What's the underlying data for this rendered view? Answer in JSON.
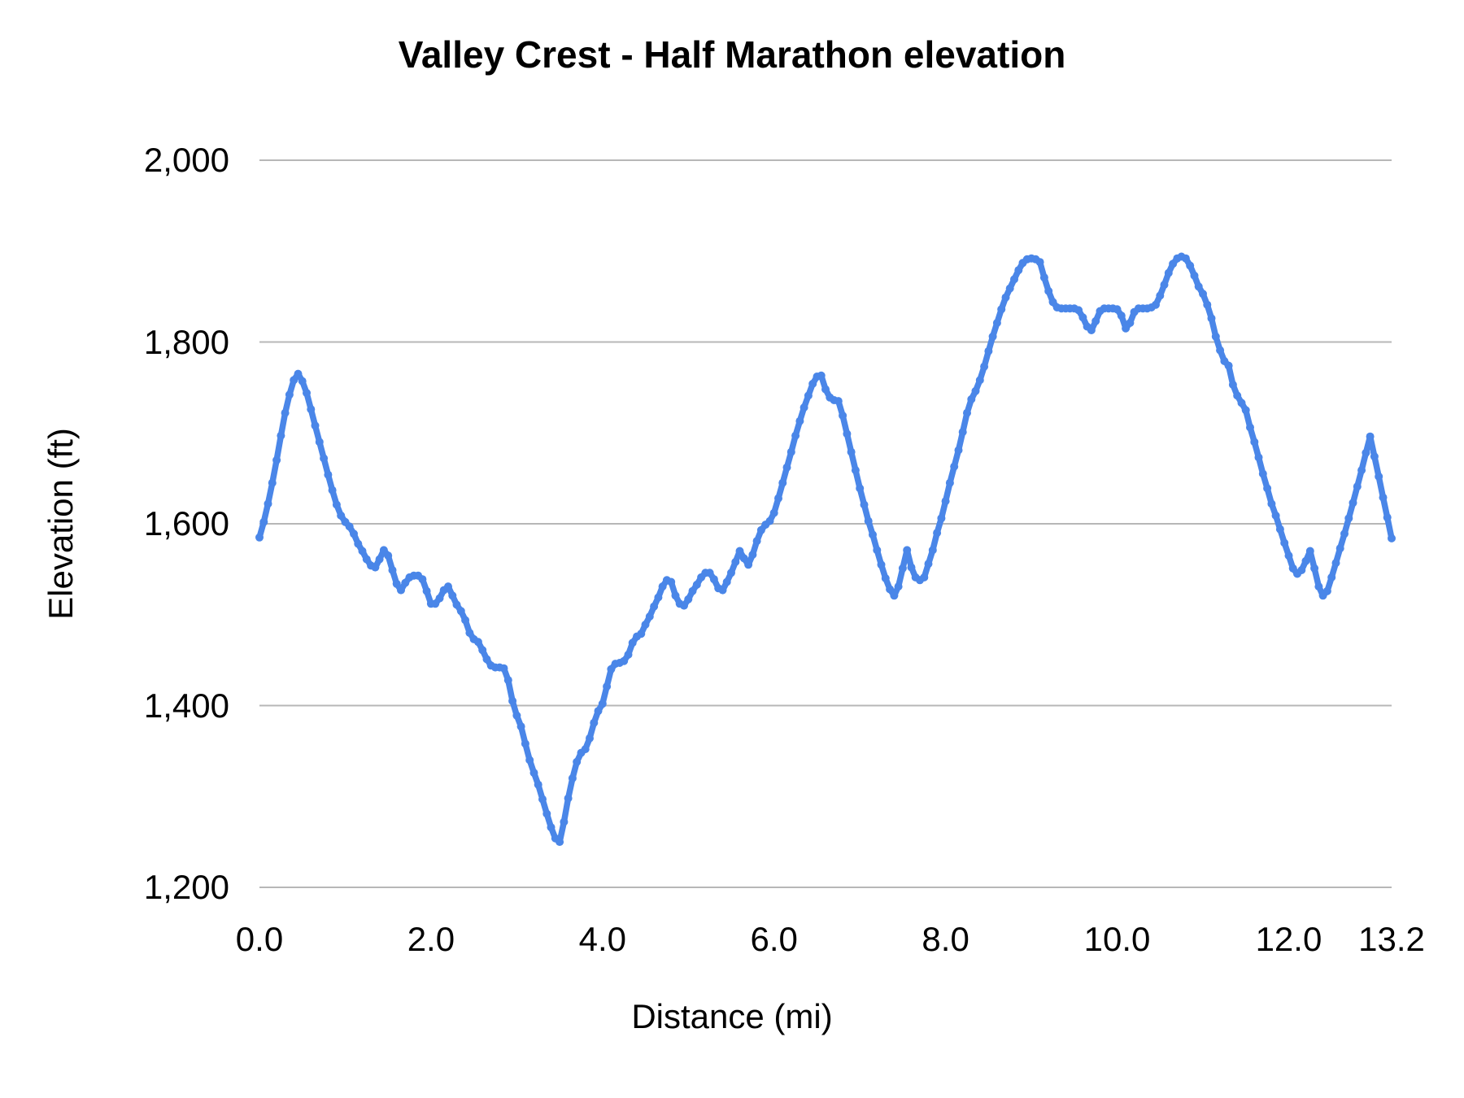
{
  "chart_data": {
    "type": "line",
    "title": "Valley Crest - Half Marathon elevation",
    "xlabel": "Distance (mi)",
    "ylabel": "Elevation (ft)",
    "xlim": [
      0,
      13.2
    ],
    "ylim": [
      1200,
      2000
    ],
    "grid": "horizontal",
    "legend": "none",
    "line_color": "#4a86e8",
    "gridline_color": "#b7b7b7",
    "text_color": "#000000",
    "xticks": {
      "values": [
        0,
        2,
        4,
        6,
        8,
        10,
        12,
        13.2
      ],
      "labels": [
        "0.0",
        "2.0",
        "4.0",
        "6.0",
        "8.0",
        "10.0",
        "12.0",
        "13.2"
      ]
    },
    "yticks": {
      "values": [
        1200,
        1400,
        1600,
        1800,
        2000
      ],
      "labels": [
        "1,200",
        "1,400",
        "1,600",
        "1,800",
        "2,000"
      ]
    },
    "series": [
      {
        "name": "Elevation",
        "points": [
          [
            0.0,
            1585
          ],
          [
            0.05,
            1602
          ],
          [
            0.1,
            1622
          ],
          [
            0.15,
            1645
          ],
          [
            0.2,
            1670
          ],
          [
            0.25,
            1697
          ],
          [
            0.3,
            1722
          ],
          [
            0.35,
            1742
          ],
          [
            0.4,
            1758
          ],
          [
            0.45,
            1765
          ],
          [
            0.5,
            1757
          ],
          [
            0.55,
            1744
          ],
          [
            0.6,
            1726
          ],
          [
            0.65,
            1708
          ],
          [
            0.7,
            1690
          ],
          [
            0.75,
            1672
          ],
          [
            0.8,
            1654
          ],
          [
            0.85,
            1637
          ],
          [
            0.9,
            1621
          ],
          [
            0.95,
            1609
          ],
          [
            1.0,
            1602
          ],
          [
            1.05,
            1597
          ],
          [
            1.1,
            1589
          ],
          [
            1.15,
            1578
          ],
          [
            1.2,
            1570
          ],
          [
            1.25,
            1561
          ],
          [
            1.3,
            1554
          ],
          [
            1.35,
            1552
          ],
          [
            1.4,
            1561
          ],
          [
            1.45,
            1571
          ],
          [
            1.5,
            1565
          ],
          [
            1.55,
            1549
          ],
          [
            1.6,
            1534
          ],
          [
            1.65,
            1527
          ],
          [
            1.7,
            1535
          ],
          [
            1.75,
            1541
          ],
          [
            1.8,
            1543
          ],
          [
            1.85,
            1543
          ],
          [
            1.9,
            1539
          ],
          [
            1.95,
            1526
          ],
          [
            2.0,
            1512
          ],
          [
            2.05,
            1512
          ],
          [
            2.1,
            1518
          ],
          [
            2.15,
            1527
          ],
          [
            2.2,
            1531
          ],
          [
            2.25,
            1521
          ],
          [
            2.3,
            1511
          ],
          [
            2.35,
            1504
          ],
          [
            2.4,
            1494
          ],
          [
            2.45,
            1480
          ],
          [
            2.5,
            1473
          ],
          [
            2.55,
            1470
          ],
          [
            2.6,
            1461
          ],
          [
            2.65,
            1451
          ],
          [
            2.7,
            1444
          ],
          [
            2.75,
            1442
          ],
          [
            2.8,
            1442
          ],
          [
            2.85,
            1441
          ],
          [
            2.9,
            1428
          ],
          [
            2.95,
            1405
          ],
          [
            3.0,
            1389
          ],
          [
            3.05,
            1377
          ],
          [
            3.1,
            1358
          ],
          [
            3.15,
            1340
          ],
          [
            3.2,
            1326
          ],
          [
            3.25,
            1313
          ],
          [
            3.3,
            1297
          ],
          [
            3.35,
            1281
          ],
          [
            3.4,
            1266
          ],
          [
            3.45,
            1254
          ],
          [
            3.5,
            1250
          ],
          [
            3.55,
            1272
          ],
          [
            3.6,
            1298
          ],
          [
            3.65,
            1320
          ],
          [
            3.7,
            1338
          ],
          [
            3.75,
            1348
          ],
          [
            3.8,
            1352
          ],
          [
            3.85,
            1364
          ],
          [
            3.9,
            1381
          ],
          [
            3.95,
            1394
          ],
          [
            4.0,
            1402
          ],
          [
            4.05,
            1421
          ],
          [
            4.1,
            1440
          ],
          [
            4.15,
            1446
          ],
          [
            4.2,
            1447
          ],
          [
            4.25,
            1449
          ],
          [
            4.3,
            1456
          ],
          [
            4.35,
            1469
          ],
          [
            4.4,
            1476
          ],
          [
            4.45,
            1479
          ],
          [
            4.5,
            1489
          ],
          [
            4.55,
            1498
          ],
          [
            4.6,
            1509
          ],
          [
            4.65,
            1519
          ],
          [
            4.7,
            1531
          ],
          [
            4.75,
            1538
          ],
          [
            4.8,
            1536
          ],
          [
            4.85,
            1521
          ],
          [
            4.9,
            1512
          ],
          [
            4.95,
            1510
          ],
          [
            5.0,
            1517
          ],
          [
            5.05,
            1526
          ],
          [
            5.1,
            1533
          ],
          [
            5.15,
            1541
          ],
          [
            5.2,
            1546
          ],
          [
            5.25,
            1546
          ],
          [
            5.3,
            1539
          ],
          [
            5.35,
            1529
          ],
          [
            5.4,
            1527
          ],
          [
            5.45,
            1536
          ],
          [
            5.5,
            1546
          ],
          [
            5.55,
            1558
          ],
          [
            5.6,
            1570
          ],
          [
            5.65,
            1562
          ],
          [
            5.7,
            1555
          ],
          [
            5.75,
            1566
          ],
          [
            5.8,
            1581
          ],
          [
            5.85,
            1593
          ],
          [
            5.9,
            1599
          ],
          [
            5.95,
            1603
          ],
          [
            6.0,
            1612
          ],
          [
            6.05,
            1628
          ],
          [
            6.1,
            1645
          ],
          [
            6.15,
            1662
          ],
          [
            6.2,
            1679
          ],
          [
            6.25,
            1697
          ],
          [
            6.3,
            1713
          ],
          [
            6.35,
            1728
          ],
          [
            6.4,
            1741
          ],
          [
            6.45,
            1754
          ],
          [
            6.5,
            1762
          ],
          [
            6.55,
            1763
          ],
          [
            6.6,
            1748
          ],
          [
            6.65,
            1739
          ],
          [
            6.7,
            1736
          ],
          [
            6.75,
            1735
          ],
          [
            6.8,
            1719
          ],
          [
            6.85,
            1699
          ],
          [
            6.9,
            1679
          ],
          [
            6.95,
            1659
          ],
          [
            7.0,
            1639
          ],
          [
            7.05,
            1621
          ],
          [
            7.1,
            1603
          ],
          [
            7.15,
            1588
          ],
          [
            7.2,
            1571
          ],
          [
            7.25,
            1555
          ],
          [
            7.3,
            1540
          ],
          [
            7.35,
            1528
          ],
          [
            7.4,
            1521
          ],
          [
            7.45,
            1531
          ],
          [
            7.5,
            1551
          ],
          [
            7.55,
            1571
          ],
          [
            7.6,
            1552
          ],
          [
            7.65,
            1541
          ],
          [
            7.7,
            1538
          ],
          [
            7.75,
            1541
          ],
          [
            7.8,
            1556
          ],
          [
            7.85,
            1571
          ],
          [
            7.9,
            1590
          ],
          [
            7.95,
            1606
          ],
          [
            8.0,
            1625
          ],
          [
            8.05,
            1645
          ],
          [
            8.1,
            1663
          ],
          [
            8.15,
            1681
          ],
          [
            8.2,
            1701
          ],
          [
            8.25,
            1722
          ],
          [
            8.3,
            1737
          ],
          [
            8.35,
            1746
          ],
          [
            8.4,
            1758
          ],
          [
            8.45,
            1773
          ],
          [
            8.5,
            1790
          ],
          [
            8.55,
            1806
          ],
          [
            8.6,
            1821
          ],
          [
            8.65,
            1836
          ],
          [
            8.7,
            1849
          ],
          [
            8.75,
            1859
          ],
          [
            8.8,
            1869
          ],
          [
            8.85,
            1879
          ],
          [
            8.9,
            1887
          ],
          [
            8.95,
            1891
          ],
          [
            9.0,
            1892
          ],
          [
            9.05,
            1891
          ],
          [
            9.1,
            1888
          ],
          [
            9.15,
            1871
          ],
          [
            9.2,
            1856
          ],
          [
            9.25,
            1844
          ],
          [
            9.3,
            1838
          ],
          [
            9.35,
            1837
          ],
          [
            9.4,
            1837
          ],
          [
            9.45,
            1837
          ],
          [
            9.5,
            1837
          ],
          [
            9.55,
            1835
          ],
          [
            9.6,
            1827
          ],
          [
            9.65,
            1817
          ],
          [
            9.7,
            1813
          ],
          [
            9.75,
            1823
          ],
          [
            9.8,
            1834
          ],
          [
            9.85,
            1837
          ],
          [
            9.9,
            1837
          ],
          [
            9.95,
            1837
          ],
          [
            10.0,
            1836
          ],
          [
            10.05,
            1829
          ],
          [
            10.1,
            1815
          ],
          [
            10.15,
            1821
          ],
          [
            10.2,
            1833
          ],
          [
            10.25,
            1837
          ],
          [
            10.3,
            1837
          ],
          [
            10.35,
            1837
          ],
          [
            10.4,
            1838
          ],
          [
            10.45,
            1841
          ],
          [
            10.5,
            1851
          ],
          [
            10.55,
            1863
          ],
          [
            10.6,
            1876
          ],
          [
            10.65,
            1886
          ],
          [
            10.7,
            1892
          ],
          [
            10.75,
            1894
          ],
          [
            10.8,
            1892
          ],
          [
            10.85,
            1884
          ],
          [
            10.9,
            1873
          ],
          [
            10.95,
            1861
          ],
          [
            11.0,
            1853
          ],
          [
            11.05,
            1841
          ],
          [
            11.1,
            1826
          ],
          [
            11.15,
            1806
          ],
          [
            11.2,
            1791
          ],
          [
            11.25,
            1779
          ],
          [
            11.3,
            1774
          ],
          [
            11.35,
            1753
          ],
          [
            11.4,
            1741
          ],
          [
            11.45,
            1733
          ],
          [
            11.5,
            1725
          ],
          [
            11.55,
            1706
          ],
          [
            11.6,
            1690
          ],
          [
            11.65,
            1673
          ],
          [
            11.7,
            1655
          ],
          [
            11.75,
            1639
          ],
          [
            11.8,
            1622
          ],
          [
            11.85,
            1609
          ],
          [
            11.9,
            1594
          ],
          [
            11.95,
            1579
          ],
          [
            12.0,
            1565
          ],
          [
            12.05,
            1551
          ],
          [
            12.1,
            1545
          ],
          [
            12.15,
            1549
          ],
          [
            12.2,
            1559
          ],
          [
            12.25,
            1570
          ],
          [
            12.3,
            1551
          ],
          [
            12.35,
            1531
          ],
          [
            12.4,
            1521
          ],
          [
            12.45,
            1526
          ],
          [
            12.5,
            1541
          ],
          [
            12.55,
            1557
          ],
          [
            12.6,
            1573
          ],
          [
            12.65,
            1589
          ],
          [
            12.7,
            1606
          ],
          [
            12.75,
            1623
          ],
          [
            12.8,
            1641
          ],
          [
            12.85,
            1659
          ],
          [
            12.9,
            1678
          ],
          [
            12.95,
            1696
          ],
          [
            13.0,
            1674
          ],
          [
            13.05,
            1652
          ],
          [
            13.1,
            1629
          ],
          [
            13.15,
            1607
          ],
          [
            13.2,
            1584
          ]
        ]
      }
    ]
  }
}
